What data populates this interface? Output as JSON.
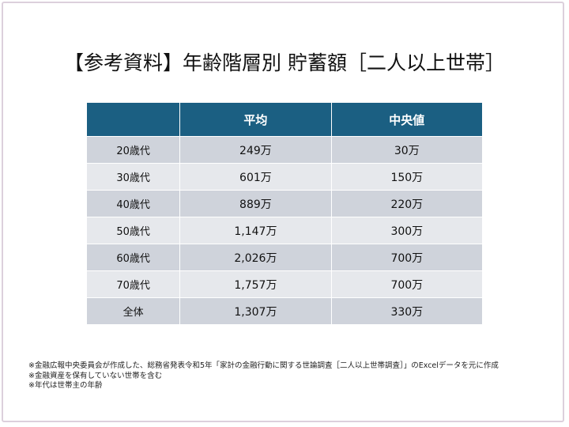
{
  "title": "【参考資料】年齢階層別 貯蓄額［二人以上世帯］",
  "table": {
    "headers": [
      "",
      "平均",
      "中央値"
    ],
    "rows": [
      {
        "label": "20歳代",
        "mean": "249万",
        "median": "30万"
      },
      {
        "label": "30歳代",
        "mean": "601万",
        "median": "150万"
      },
      {
        "label": "40歳代",
        "mean": "889万",
        "median": "220万"
      },
      {
        "label": "50歳代",
        "mean": "1,147万",
        "median": "300万"
      },
      {
        "label": "60歳代",
        "mean": "2,026万",
        "median": "700万"
      },
      {
        "label": "70歳代",
        "mean": "1,757万",
        "median": "700万"
      },
      {
        "label": "全体",
        "mean": "1,307万",
        "median": "330万"
      }
    ]
  },
  "notes": [
    "※金融広報中央委員会が作成した、総務省発表令和5年「家計の金融行動に関する世論調査［二人以上世帯調査］」のExcelデータを元に作成",
    "※金融資産を保有していない世帯を含む",
    "※年代は世帯主の年齢"
  ],
  "colors": {
    "header": "#1b5f82",
    "row_odd": "#cfd3db",
    "row_even": "#e6e8ec"
  }
}
